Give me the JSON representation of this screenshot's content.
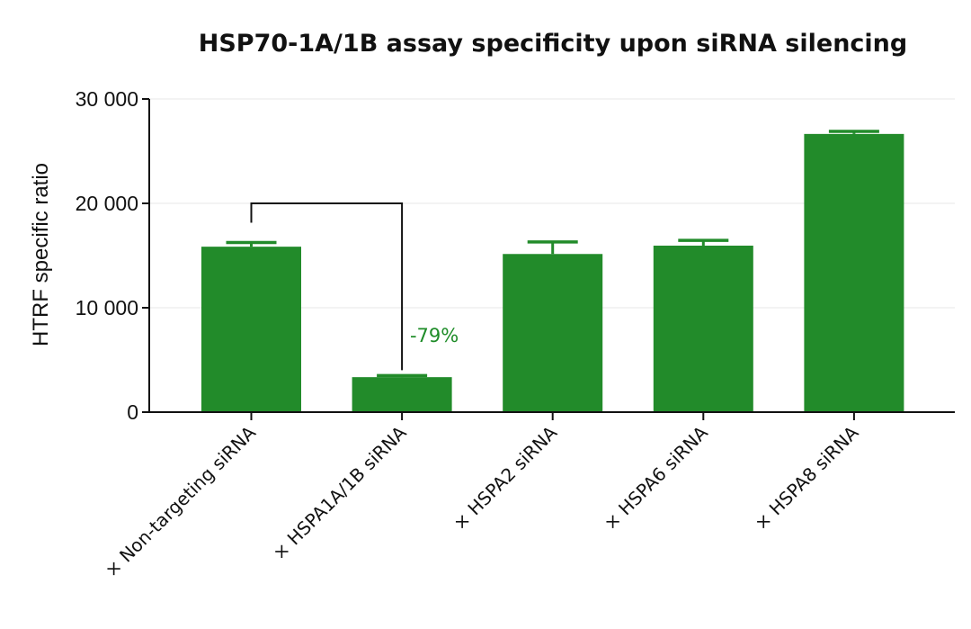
{
  "chart_data": {
    "type": "bar",
    "title": "HSP70-1A/1B assay specificity upon siRNA silencing",
    "xlabel": "",
    "ylabel": "HTRF specific ratio",
    "ylim": [
      0,
      30000
    ],
    "yticks": [
      0,
      10000,
      20000,
      30000
    ],
    "ytick_labels": [
      "0",
      "10 000",
      "20 000",
      "30 000"
    ],
    "grid": "horizontal light gray",
    "legend": "none",
    "categories": [
      "× Non-targeting siRNA",
      "× HSPA1A/1B siRNA",
      "× HSPA2 siRNA",
      "× HSPA6 siRNA",
      "× HSPA8 siRNA"
    ],
    "values": [
      15850,
      3350,
      15150,
      15950,
      26650
    ],
    "error_upper": [
      16250,
      3500,
      16300,
      16450,
      26900
    ],
    "bar_color": "#228B2A",
    "annotations": [
      {
        "type": "bracket",
        "from": 0,
        "to": 1,
        "y": 20000
      },
      {
        "type": "text",
        "text": "-79%",
        "category": 1,
        "y": 7000,
        "color": "#1E8C28"
      }
    ]
  }
}
